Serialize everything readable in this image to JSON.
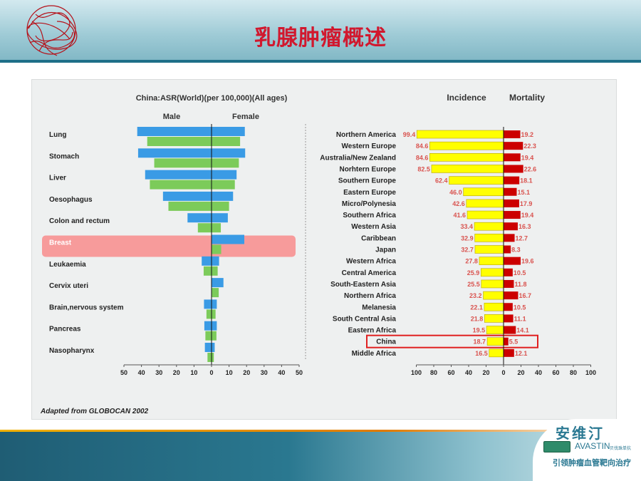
{
  "slide": {
    "title": "乳腺肿瘤概述",
    "source_note": "Adapted from GLOBOCAN 2002",
    "brand": {
      "name_cn": "安维汀",
      "name_en": "AVASTIN",
      "name_en_sub": "贝伐珠单抗",
      "tagline": "引领肿瘤血管靶向治疗"
    }
  },
  "chart_data": [
    {
      "type": "bar",
      "orientation": "horizontal-butterfly",
      "title": "China:ASR(World)(per 100,000)(All ages)",
      "left_label": "Male",
      "right_label": "Female",
      "categories": [
        "Lung",
        "Stomach",
        "Liver",
        "Oesophagus",
        "Colon and rectum",
        "Breast",
        "Leukaemia",
        "Cervix uteri",
        "Brain,nervous system",
        "Pancreas",
        "Nasopharynx"
      ],
      "highlight": "Breast",
      "series": [
        {
          "name": "Male",
          "side": "left",
          "color": "#3a9be5",
          "incidence": [
            42.4,
            41.9,
            37.9,
            27.7,
            13.7,
            null,
            5.6,
            null,
            4.3,
            4.1,
            3.8
          ]
        },
        {
          "name": "Male",
          "side": "left",
          "color": "#7ccb5a",
          "mortality": [
            36.7,
            32.7,
            35.2,
            24.6,
            7.8,
            null,
            4.5,
            null,
            2.9,
            3.5,
            2.3
          ]
        },
        {
          "name": "Female",
          "side": "right",
          "color": "#3a9be5",
          "incidence": [
            19.0,
            19.2,
            14.3,
            12.3,
            9.3,
            18.7,
            4.3,
            6.8,
            3.0,
            3.0,
            1.8
          ]
        },
        {
          "name": "Female",
          "side": "right",
          "color": "#7ccb5a",
          "mortality": [
            16.3,
            15.6,
            13.3,
            10.0,
            5.3,
            5.5,
            3.5,
            4.1,
            2.3,
            2.8,
            1.3
          ]
        }
      ],
      "x_ticks": [
        50,
        40,
        30,
        20,
        10,
        0,
        10,
        20,
        30,
        40,
        50
      ],
      "xlim": [
        -50,
        50
      ]
    },
    {
      "type": "bar",
      "orientation": "horizontal-butterfly",
      "left_label": "Incidence",
      "right_label": "Mortality",
      "categories": [
        "Northern America",
        "Western Europe",
        "Australia/New Zealand",
        "Norhtern Europe",
        "Southern Europe",
        "Eastern Europe",
        "Micro/Polynesia",
        "Southern Africa",
        "Western Asia",
        "Caribbean",
        "Japan",
        "Western Africa",
        "Central America",
        "South-Eastern Asia",
        "Northern Africa",
        "Melanesia",
        "South Central Asia",
        "Eastern Africa",
        "China",
        "Middle Africa"
      ],
      "highlight": "China",
      "series": [
        {
          "name": "Incidence",
          "side": "left",
          "color": "#ffff00",
          "values": [
            99.4,
            84.6,
            84.6,
            82.5,
            62.4,
            46.0,
            42.6,
            41.6,
            33.4,
            32.9,
            32.7,
            27.8,
            25.9,
            25.5,
            23.2,
            22.1,
            21.8,
            19.5,
            18.7,
            16.5
          ],
          "labels": [
            "99.4",
            "84.6",
            "84.6",
            "82.5",
            "62.4",
            "46.0",
            "42.6",
            "41.6",
            "33.4",
            "32.9",
            "32.7",
            "27.8",
            "25.9",
            "25.5",
            "23.2",
            "22.1",
            "21.8",
            "19.5",
            "18.7",
            "16.5"
          ]
        },
        {
          "name": "Mortality",
          "side": "right",
          "color": "#cc0000",
          "values": [
            19.2,
            22.3,
            19.4,
            22.6,
            18.1,
            15.1,
            17.9,
            19.4,
            16.3,
            12.7,
            8.3,
            19.6,
            10.5,
            11.8,
            16.7,
            10.5,
            11.1,
            14.1,
            5.5,
            12.1
          ],
          "labels": [
            "19.2",
            "22.3",
            "19.4",
            "22.6",
            "18.1",
            "15.1",
            "17.9",
            "19.4",
            "16.3",
            "12.7",
            "8.3",
            "19.6",
            "10.5",
            "11.8",
            "16.7",
            "10.5",
            "11.1",
            "14.1",
            "5.5",
            "12.1"
          ]
        }
      ],
      "x_ticks": [
        100,
        80,
        60,
        40,
        20,
        0,
        20,
        40,
        60,
        80,
        100
      ],
      "xlim": [
        -100,
        100
      ]
    }
  ]
}
